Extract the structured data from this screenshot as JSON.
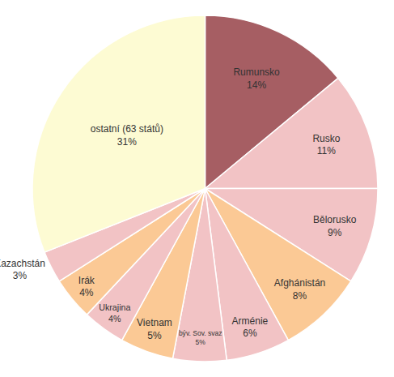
{
  "chart_data": {
    "type": "pie",
    "categories": [
      "Rumunsko",
      "Rusko",
      "Bělorusko",
      "Afghánistán",
      "Arménie",
      "býv. Sov. svaz",
      "Vietnam",
      "Ukrajina",
      "Irák",
      "Kazachstán",
      "ostatní (63 států)"
    ],
    "values": [
      14,
      11,
      9,
      8,
      6,
      5,
      5,
      4,
      4,
      3,
      31
    ],
    "value_labels": [
      "14%",
      "11%",
      "9%",
      "8%",
      "6%",
      "5%",
      "5%",
      "4%",
      "4%",
      "3%",
      "31%"
    ],
    "data_labels": true,
    "colors": [
      "#a65e63",
      "#f2c3c5",
      "#f2c3c5",
      "#fbc995",
      "#f2c3c5",
      "#f2c3c5",
      "#fbc995",
      "#f2c3c5",
      "#fbc995",
      "#f2c3c5",
      "#fdfbd3"
    ]
  }
}
